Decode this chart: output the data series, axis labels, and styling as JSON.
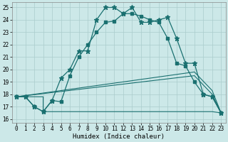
{
  "xlabel": "Humidex (Indice chaleur)",
  "bg_color": "#cce8e8",
  "grid_color": "#aacccc",
  "line_color": "#1a7070",
  "line1_x": [
    0,
    1,
    2,
    3,
    4,
    5,
    6,
    7,
    8,
    9,
    10,
    11,
    12,
    13,
    14,
    15,
    16,
    17,
    18,
    19,
    20,
    21,
    22,
    23
  ],
  "line1_y": [
    17.8,
    17.8,
    17.0,
    16.6,
    17.5,
    19.3,
    20.0,
    21.5,
    21.5,
    24.0,
    25.0,
    25.0,
    24.5,
    25.0,
    23.8,
    23.8,
    24.0,
    24.2,
    22.5,
    20.5,
    20.5,
    18.0,
    17.8,
    16.5
  ],
  "line2_x": [
    0,
    1,
    2,
    3,
    4,
    5,
    6,
    7,
    8,
    9,
    10,
    11,
    12,
    13,
    14,
    15,
    16,
    17,
    18,
    19,
    20,
    21,
    22,
    23
  ],
  "line2_y": [
    17.8,
    17.8,
    17.0,
    16.6,
    17.5,
    17.4,
    19.5,
    21.0,
    22.0,
    23.0,
    23.8,
    23.9,
    24.5,
    24.5,
    24.3,
    24.0,
    23.8,
    22.5,
    20.5,
    20.3,
    19.0,
    18.0,
    17.8,
    16.5
  ],
  "line3_x": [
    0,
    3,
    3,
    22,
    23
  ],
  "line3_y": [
    17.8,
    17.8,
    16.6,
    16.6,
    16.5
  ],
  "line4_x": [
    0,
    20,
    22,
    23
  ],
  "line4_y": [
    17.8,
    19.5,
    18.0,
    16.5
  ],
  "line5_x": [
    0,
    20,
    22,
    23
  ],
  "line5_y": [
    17.8,
    19.8,
    18.3,
    16.5
  ],
  "xticks": [
    0,
    1,
    2,
    3,
    4,
    5,
    6,
    7,
    8,
    9,
    10,
    11,
    12,
    13,
    14,
    15,
    16,
    17,
    18,
    19,
    20,
    21,
    22,
    23
  ],
  "yticks": [
    16,
    17,
    18,
    19,
    20,
    21,
    22,
    23,
    24,
    25
  ],
  "xlim": [
    -0.5,
    23.5
  ],
  "ylim": [
    15.7,
    25.4
  ],
  "tick_fontsize": 5.5,
  "label_fontsize": 6.5
}
